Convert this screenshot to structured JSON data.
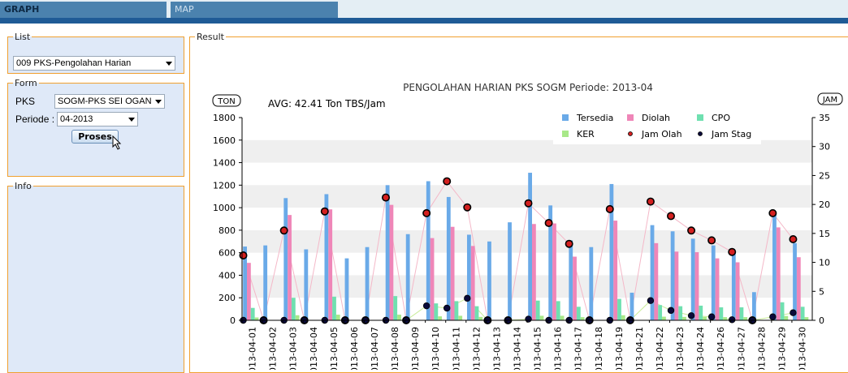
{
  "tabs": [
    {
      "label": "GRAPH",
      "active": true
    },
    {
      "label": "MAP",
      "active": false
    }
  ],
  "panels": {
    "list": {
      "legend": "List",
      "selected": "009 PKS-Pengolahan Harian"
    },
    "form": {
      "legend": "Form",
      "pks_label": "PKS",
      "pks_value": "SOGM-PKS SEI OGAN",
      "periode_label": "Periode :",
      "periode_value": "04-2013",
      "button_label": "Proses"
    },
    "info": {
      "legend": "Info"
    },
    "result": {
      "legend": "Result"
    }
  },
  "colors": {
    "tersedia": "#6aaae8",
    "diolah": "#ef86b8",
    "cpo": "#6fe0b0",
    "ker": "#a8e888",
    "jam_olah_line": "#f4b8c8",
    "jam_stag_line": "#c8ec98",
    "accent_border": "#f0a030",
    "tab_blue": "#4b82ae"
  },
  "chart_data": {
    "type": "bar",
    "title": "PENGOLAHAN HARIAN PKS SOGM Periode: 2013-04",
    "subtitle": "AVG: 42.41 Ton TBS/Jam",
    "ylabel_left": "TON",
    "ylabel_right": "JAM",
    "ylim_left": [
      0,
      1800
    ],
    "yticks_left": [
      0,
      200,
      400,
      600,
      800,
      1000,
      1200,
      1400,
      1600,
      1800
    ],
    "ylim_right": [
      0,
      35
    ],
    "yticks_right": [
      0,
      5,
      10,
      15,
      20,
      25,
      30,
      35
    ],
    "legend_position": "top-right",
    "categories": [
      "2013-04-01",
      "2013-04-02",
      "2013-04-03",
      "2013-04-04",
      "2013-04-05",
      "2013-04-06",
      "2013-04-07",
      "2013-04-08",
      "2013-04-09",
      "2013-04-10",
      "2013-04-11",
      "2013-04-12",
      "2013-04-13",
      "2013-04-14",
      "2013-04-15",
      "2013-04-16",
      "2013-04-17",
      "2013-04-18",
      "2013-04-19",
      "2013-04-21",
      "2013-04-22",
      "2013-04-23",
      "2013-04-24",
      "2013-04-26",
      "2013-04-27",
      "2013-04-28",
      "2013-04-29",
      "2013-04-30"
    ],
    "bar_series": [
      {
        "name": "Tersedia",
        "axis": "left",
        "values": [
          655,
          665,
          1085,
          630,
          1120,
          550,
          650,
          1200,
          765,
          1235,
          1095,
          760,
          700,
          870,
          1310,
          1020,
          710,
          650,
          1210,
          245,
          845,
          790,
          725,
          665,
          620,
          250,
          955,
          685
        ]
      },
      {
        "name": "Diolah",
        "axis": "left",
        "values": [
          510,
          0,
          935,
          0,
          985,
          0,
          0,
          1025,
          0,
          730,
          830,
          660,
          0,
          0,
          855,
          860,
          565,
          0,
          885,
          0,
          685,
          610,
          605,
          550,
          515,
          0,
          825,
          560
        ]
      },
      {
        "name": "CPO",
        "axis": "left",
        "values": [
          110,
          0,
          200,
          0,
          210,
          0,
          0,
          215,
          0,
          150,
          170,
          125,
          0,
          0,
          175,
          170,
          120,
          0,
          190,
          0,
          135,
          125,
          130,
          115,
          115,
          0,
          160,
          120
        ]
      },
      {
        "name": "KER",
        "axis": "left",
        "values": [
          25,
          0,
          45,
          0,
          50,
          0,
          0,
          50,
          0,
          35,
          40,
          30,
          0,
          0,
          40,
          40,
          28,
          0,
          45,
          0,
          32,
          30,
          30,
          28,
          28,
          0,
          38,
          28
        ]
      }
    ],
    "line_series": [
      {
        "name": "Jam Olah",
        "axis": "right",
        "values": [
          11.2,
          0,
          15.5,
          0,
          18.8,
          0,
          0,
          21.2,
          0,
          18.5,
          24,
          19.5,
          0,
          0,
          20.2,
          16.8,
          13.2,
          0,
          19.2,
          0,
          20.5,
          18,
          15.5,
          13.8,
          11.8,
          0,
          18.5,
          14
        ]
      },
      {
        "name": "Jam Stag",
        "axis": "right",
        "values": [
          0,
          0,
          0,
          0,
          0,
          0,
          0,
          0,
          0,
          2.5,
          2.1,
          3.8,
          0,
          0,
          0.2,
          0,
          0,
          0,
          0,
          0,
          3.4,
          1.7,
          0.8,
          0.6,
          0.1,
          0,
          0.6,
          1.3
        ]
      }
    ]
  }
}
